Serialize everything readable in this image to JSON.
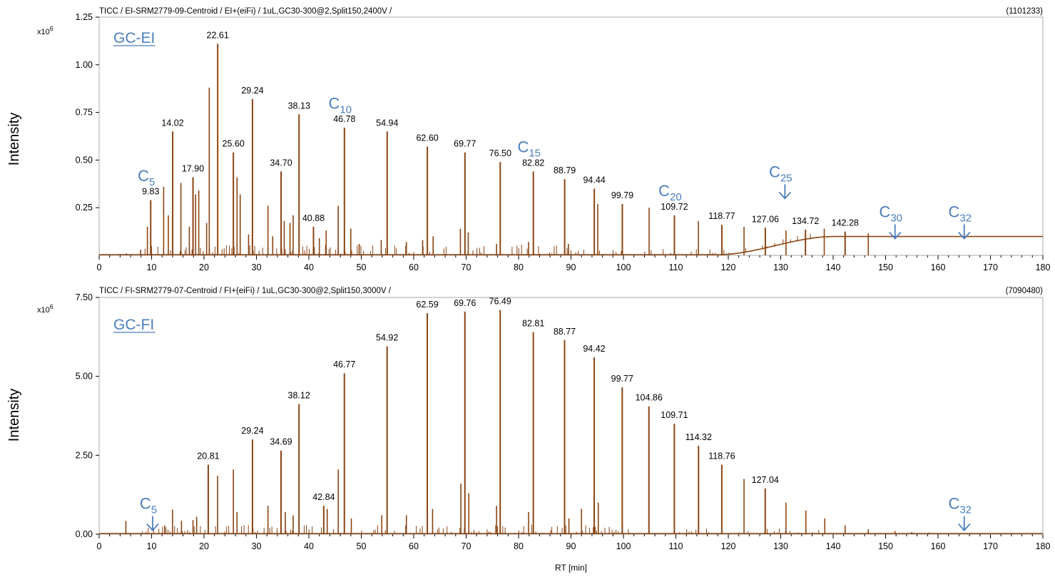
{
  "chart_data": [
    {
      "type": "line",
      "header": "TICC / EI-SRM2779-09-Centroid / EI+(eiFi) / 1uL,GC30-300@2,Split150,2400V /",
      "max_intensity": "(1101233)",
      "panel_label": "GC-EI",
      "exponent_base": "x10",
      "exponent_power": "6",
      "ylabel": "Intensity",
      "xlabel": "",
      "xlim": [
        0,
        180
      ],
      "ylim": [
        0,
        1.25
      ],
      "x_ticks": [
        0,
        10,
        20,
        30,
        40,
        50,
        60,
        70,
        80,
        90,
        100,
        110,
        120,
        130,
        140,
        150,
        160,
        170,
        180
      ],
      "y_ticks": [
        {
          "value": 0.25,
          "label": "0.25"
        },
        {
          "value": 0.5,
          "label": "0.50"
        },
        {
          "value": 0.75,
          "label": "0.75"
        },
        {
          "value": 1.0,
          "label": "1.00"
        },
        {
          "value": 1.25,
          "label": "1.25"
        }
      ],
      "series_color": "#8B4513",
      "peaks": [
        {
          "x": 9.83,
          "y": 0.29,
          "label": "9.83"
        },
        {
          "x": 14.02,
          "y": 0.65,
          "label": "14.02"
        },
        {
          "x": 17.9,
          "y": 0.41,
          "label": "17.90"
        },
        {
          "x": 22.61,
          "y": 1.11,
          "label": "22.61"
        },
        {
          "x": 25.6,
          "y": 0.54,
          "label": "25.60"
        },
        {
          "x": 29.24,
          "y": 0.82,
          "label": "29.24"
        },
        {
          "x": 34.7,
          "y": 0.44,
          "label": "34.70"
        },
        {
          "x": 38.13,
          "y": 0.74,
          "label": "38.13"
        },
        {
          "x": 40.88,
          "y": 0.15,
          "label": "40.88"
        },
        {
          "x": 46.78,
          "y": 0.67,
          "label": "46.78"
        },
        {
          "x": 54.94,
          "y": 0.65,
          "label": "54.94"
        },
        {
          "x": 62.6,
          "y": 0.57,
          "label": "62.60"
        },
        {
          "x": 69.77,
          "y": 0.54,
          "label": "69.77"
        },
        {
          "x": 76.5,
          "y": 0.49,
          "label": "76.50"
        },
        {
          "x": 82.82,
          "y": 0.44,
          "label": "82.82"
        },
        {
          "x": 88.79,
          "y": 0.4,
          "label": "88.79"
        },
        {
          "x": 94.44,
          "y": 0.35,
          "label": "94.44"
        },
        {
          "x": 99.79,
          "y": 0.27,
          "label": "99.79"
        },
        {
          "x": 109.72,
          "y": 0.21,
          "label": "109.72"
        },
        {
          "x": 118.77,
          "y": 0.16,
          "label": "118.77"
        },
        {
          "x": 127.06,
          "y": 0.145,
          "label": "127.06"
        },
        {
          "x": 134.72,
          "y": 0.135,
          "label": "134.72"
        },
        {
          "x": 142.28,
          "y": 0.125,
          "label": "142.28"
        }
      ],
      "minor_peaks": [
        {
          "x": 5.2,
          "y": 0.01
        },
        {
          "x": 7.9,
          "y": 0.03
        },
        {
          "x": 9.2,
          "y": 0.15
        },
        {
          "x": 12.3,
          "y": 0.36
        },
        {
          "x": 13.2,
          "y": 0.21
        },
        {
          "x": 15.6,
          "y": 0.38
        },
        {
          "x": 17.2,
          "y": 0.15
        },
        {
          "x": 18.4,
          "y": 0.32
        },
        {
          "x": 19.0,
          "y": 0.34
        },
        {
          "x": 20.5,
          "y": 0.17
        },
        {
          "x": 21.0,
          "y": 0.88
        },
        {
          "x": 26.3,
          "y": 0.41
        },
        {
          "x": 26.9,
          "y": 0.32
        },
        {
          "x": 28.5,
          "y": 0.11
        },
        {
          "x": 32.2,
          "y": 0.26
        },
        {
          "x": 33.1,
          "y": 0.1
        },
        {
          "x": 35.3,
          "y": 0.18
        },
        {
          "x": 36.4,
          "y": 0.17
        },
        {
          "x": 37.0,
          "y": 0.21
        },
        {
          "x": 42.0,
          "y": 0.09
        },
        {
          "x": 43.3,
          "y": 0.13
        },
        {
          "x": 45.6,
          "y": 0.26
        },
        {
          "x": 48.0,
          "y": 0.14
        },
        {
          "x": 49.6,
          "y": 0.06
        },
        {
          "x": 53.8,
          "y": 0.08
        },
        {
          "x": 58.6,
          "y": 0.07
        },
        {
          "x": 61.7,
          "y": 0.08
        },
        {
          "x": 63.7,
          "y": 0.1
        },
        {
          "x": 68.9,
          "y": 0.14
        },
        {
          "x": 70.4,
          "y": 0.12
        },
        {
          "x": 75.8,
          "y": 0.06
        },
        {
          "x": 81.9,
          "y": 0.07
        },
        {
          "x": 89.5,
          "y": 0.06
        },
        {
          "x": 95.1,
          "y": 0.27
        },
        {
          "x": 104.9,
          "y": 0.25
        },
        {
          "x": 114.3,
          "y": 0.18
        },
        {
          "x": 123.0,
          "y": 0.15
        },
        {
          "x": 131.0,
          "y": 0.13
        },
        {
          "x": 138.3,
          "y": 0.14
        },
        {
          "x": 146.7,
          "y": 0.115
        }
      ],
      "baseline_rise": {
        "start": 118,
        "end": 140,
        "level": 0.095
      },
      "annotations": [
        {
          "base": "C",
          "sub": "5",
          "x": 9.83,
          "y": 0.39,
          "arrow": false
        },
        {
          "base": "C",
          "sub": "10",
          "x": 46.78,
          "y": 0.77,
          "arrow": false
        },
        {
          "base": "C",
          "sub": "15",
          "x": 82.82,
          "y": 0.54,
          "arrow": false
        },
        {
          "base": "C",
          "sub": "20",
          "x": 109.72,
          "y": 0.31,
          "arrow": false
        },
        {
          "base": "C",
          "sub": "25",
          "x": 130.8,
          "y": 0.41,
          "arrow": true
        },
        {
          "base": "C",
          "sub": "30",
          "x": 151.8,
          "y": 0.2,
          "arrow": true
        },
        {
          "base": "C",
          "sub": "32",
          "x": 165.0,
          "y": 0.2,
          "arrow": true
        }
      ]
    },
    {
      "type": "line",
      "header": "TICC / FI-SRM2779-07-Centroid / FI+(eiFi) / 1uL,GC30-300@2,Split150,3000V /",
      "max_intensity": "(7090480)",
      "panel_label": "GC-FI",
      "exponent_base": "x10",
      "exponent_power": "6",
      "ylabel": "Intensity",
      "xlabel": "RT [min]",
      "xlim": [
        0,
        180
      ],
      "ylim": [
        0,
        7.5
      ],
      "x_ticks": [
        0,
        10,
        20,
        30,
        40,
        50,
        60,
        70,
        80,
        90,
        100,
        110,
        120,
        130,
        140,
        150,
        160,
        170,
        180
      ],
      "y_ticks": [
        {
          "value": 0,
          "label": "0.00"
        },
        {
          "value": 2.5,
          "label": "2.50"
        },
        {
          "value": 5.0,
          "label": "5.00"
        },
        {
          "value": 7.5,
          "label": "7.50"
        }
      ],
      "series_color": "#8B4513",
      "peaks": [
        {
          "x": 20.81,
          "y": 2.2,
          "label": "20.81"
        },
        {
          "x": 29.24,
          "y": 3.0,
          "label": "29.24"
        },
        {
          "x": 34.69,
          "y": 2.65,
          "label": "34.69"
        },
        {
          "x": 38.12,
          "y": 4.12,
          "label": "38.12"
        },
        {
          "x": 42.84,
          "y": 0.9,
          "label": "42.84"
        },
        {
          "x": 46.77,
          "y": 5.1,
          "label": "46.77"
        },
        {
          "x": 54.92,
          "y": 5.95,
          "label": "54.92"
        },
        {
          "x": 62.59,
          "y": 7.0,
          "label": "62.59"
        },
        {
          "x": 69.76,
          "y": 7.05,
          "label": "69.76"
        },
        {
          "x": 76.49,
          "y": 7.1,
          "label": "76.49"
        },
        {
          "x": 82.81,
          "y": 6.4,
          "label": "82.81"
        },
        {
          "x": 88.77,
          "y": 6.15,
          "label": "88.77"
        },
        {
          "x": 94.42,
          "y": 5.6,
          "label": "94.42"
        },
        {
          "x": 99.77,
          "y": 4.65,
          "label": "99.77"
        },
        {
          "x": 104.86,
          "y": 4.05,
          "label": "104.86"
        },
        {
          "x": 109.71,
          "y": 3.5,
          "label": "109.71"
        },
        {
          "x": 114.32,
          "y": 2.8,
          "label": "114.32"
        },
        {
          "x": 118.76,
          "y": 2.2,
          "label": "118.76"
        },
        {
          "x": 127.04,
          "y": 1.45,
          "label": "127.04"
        }
      ],
      "minor_peaks": [
        {
          "x": 5.1,
          "y": 0.42
        },
        {
          "x": 12.5,
          "y": 0.28
        },
        {
          "x": 14.0,
          "y": 0.78
        },
        {
          "x": 15.7,
          "y": 0.42
        },
        {
          "x": 17.9,
          "y": 0.45
        },
        {
          "x": 18.6,
          "y": 0.55
        },
        {
          "x": 22.6,
          "y": 1.85
        },
        {
          "x": 25.6,
          "y": 2.05
        },
        {
          "x": 26.3,
          "y": 0.7
        },
        {
          "x": 32.2,
          "y": 0.9
        },
        {
          "x": 35.5,
          "y": 0.7
        },
        {
          "x": 37.0,
          "y": 0.6
        },
        {
          "x": 43.5,
          "y": 0.8
        },
        {
          "x": 45.6,
          "y": 2.05
        },
        {
          "x": 48.1,
          "y": 0.5
        },
        {
          "x": 53.9,
          "y": 0.6
        },
        {
          "x": 58.6,
          "y": 0.6
        },
        {
          "x": 63.6,
          "y": 0.8
        },
        {
          "x": 69.0,
          "y": 1.6
        },
        {
          "x": 70.5,
          "y": 1.3
        },
        {
          "x": 75.8,
          "y": 0.9
        },
        {
          "x": 81.9,
          "y": 0.7
        },
        {
          "x": 89.6,
          "y": 0.5
        },
        {
          "x": 92.0,
          "y": 0.8
        },
        {
          "x": 95.2,
          "y": 1.0
        },
        {
          "x": 123.0,
          "y": 1.75
        },
        {
          "x": 131.0,
          "y": 1.0
        },
        {
          "x": 134.8,
          "y": 0.75
        },
        {
          "x": 138.4,
          "y": 0.5
        },
        {
          "x": 142.3,
          "y": 0.28
        },
        {
          "x": 146.7,
          "y": 0.16
        },
        {
          "x": 151.8,
          "y": 0.1
        },
        {
          "x": 155.0,
          "y": 0.07
        },
        {
          "x": 158.2,
          "y": 0.05
        }
      ],
      "annotations": [
        {
          "base": "C",
          "sub": "5",
          "x": 10.2,
          "y": 0.8,
          "arrow": true
        },
        {
          "base": "C",
          "sub": "32",
          "x": 165.0,
          "y": 0.8,
          "arrow": true
        }
      ]
    }
  ]
}
